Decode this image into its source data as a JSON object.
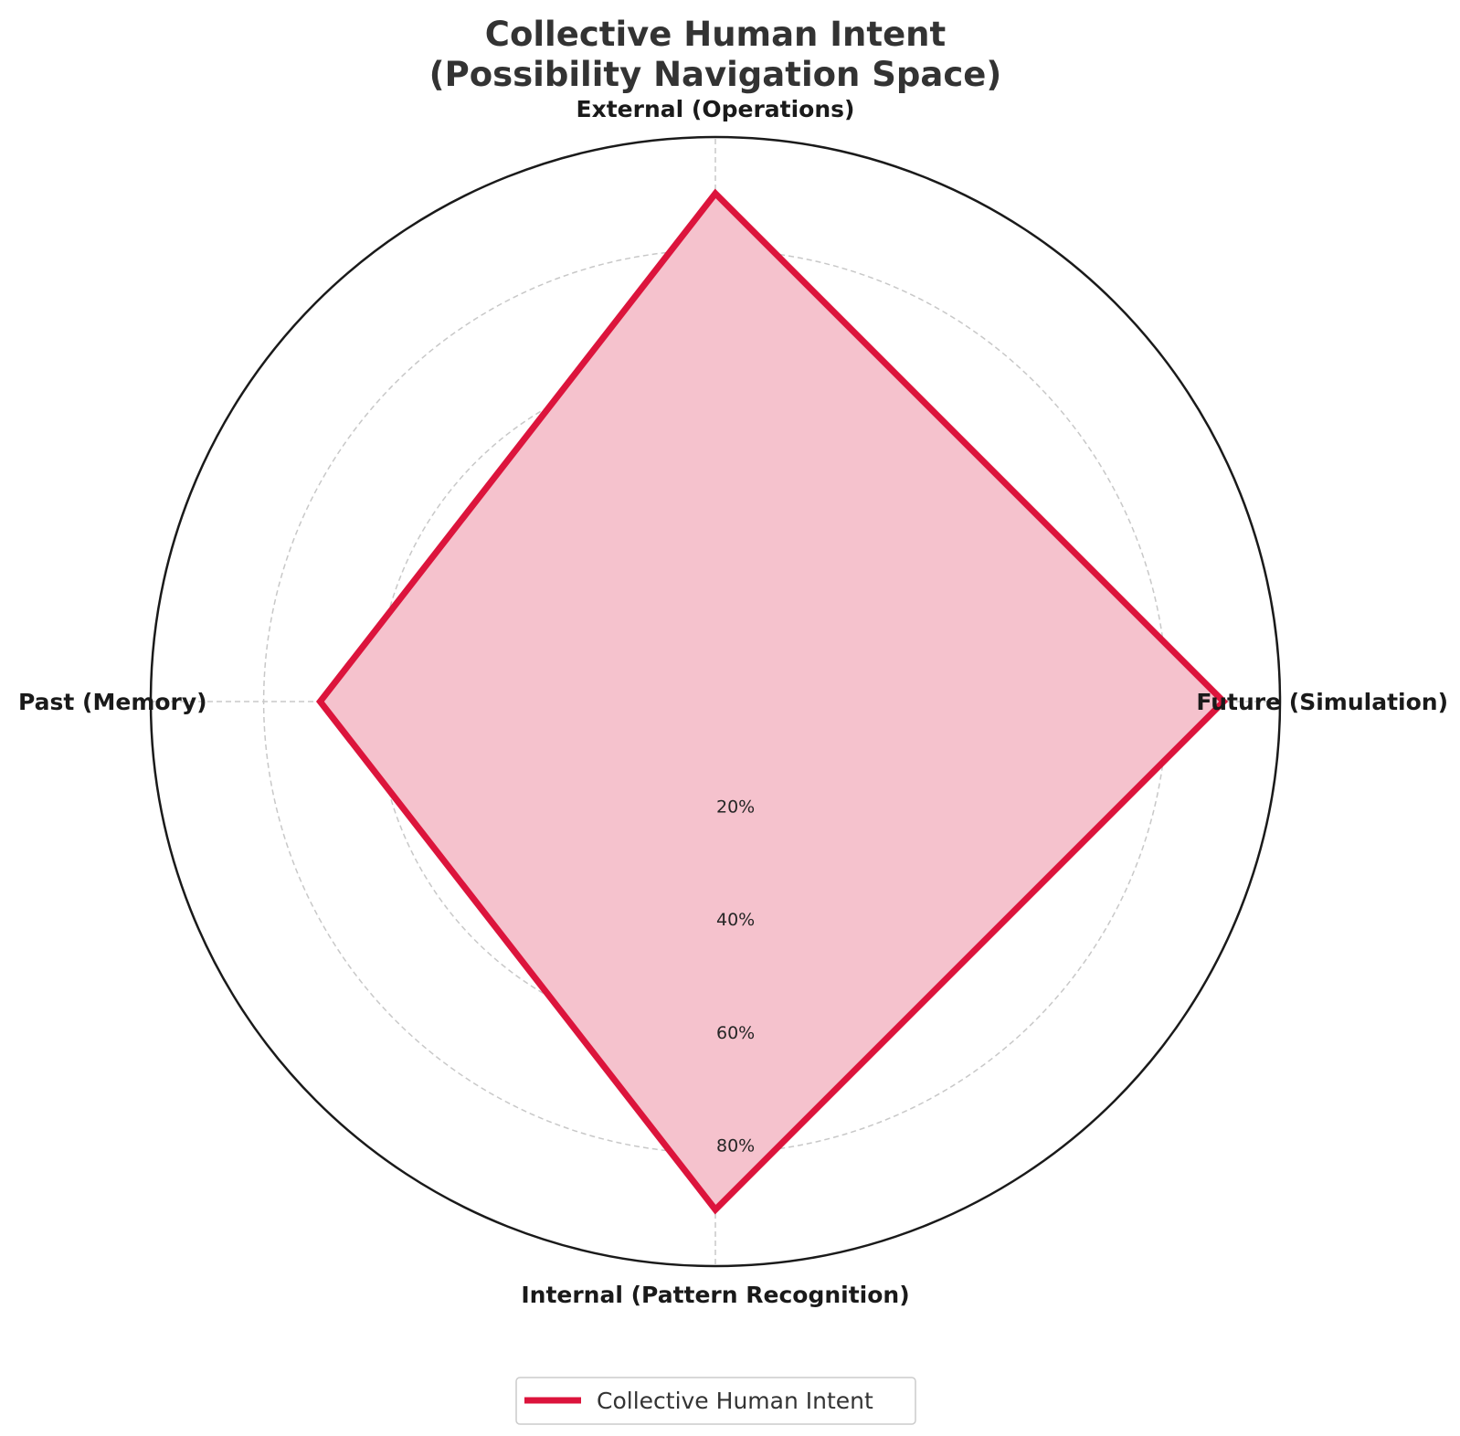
{
  "chart_data": {
    "type": "radar",
    "title_lines": [
      "Collective Human Intent",
      "(Possibility Navigation Space)"
    ],
    "axes": [
      "External (Operations)",
      "Future (Simulation)",
      "Internal (Pattern Recognition)",
      "Past (Memory)"
    ],
    "radial_ticks": [
      "20%",
      "40%",
      "60%",
      "80%"
    ],
    "radial_tick_values": [
      20,
      40,
      60,
      80
    ],
    "rmax": 100,
    "grid": true,
    "series": [
      {
        "name": "Collective Human Intent",
        "values": [
          90,
          90,
          90,
          70
        ],
        "line_color": "#dc143c",
        "fill_color": "#f5c2cd"
      }
    ],
    "legend_position": "bottom-center"
  }
}
